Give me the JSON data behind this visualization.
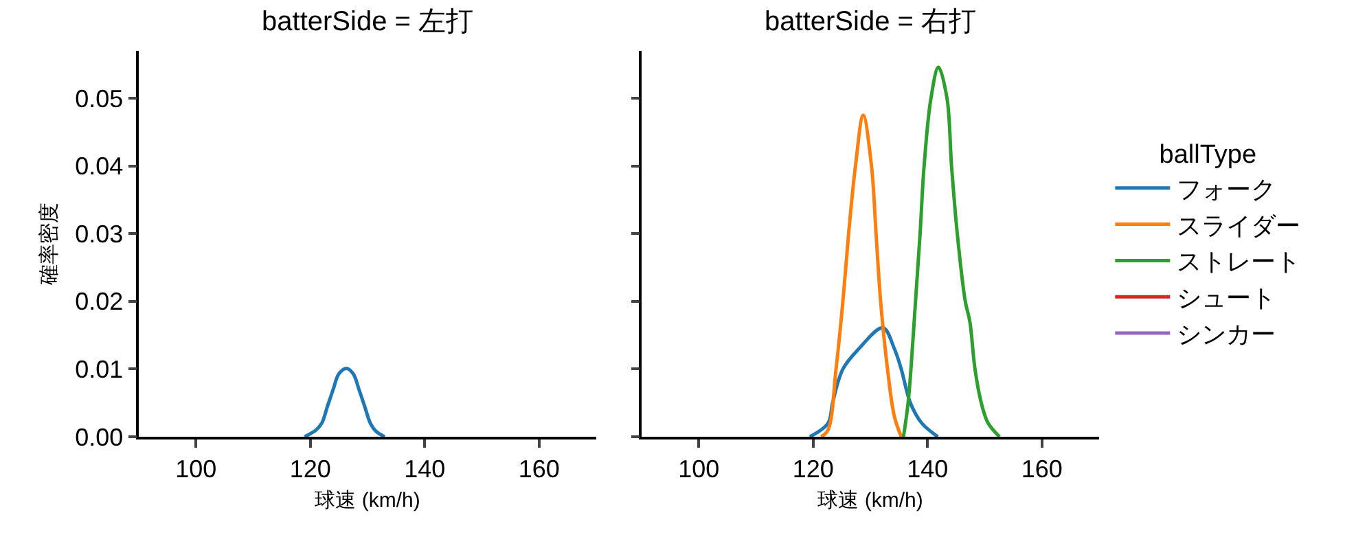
{
  "chart_data": [
    {
      "type": "line",
      "title": "batterSide = 左打",
      "xlabel": "球速 (km/h)",
      "ylabel": "確率密度",
      "xlim": [
        90,
        170
      ],
      "xticks": [
        100,
        120,
        140,
        160
      ],
      "ylim": [
        0,
        0.057
      ],
      "yticks": [
        {
          "value": 0,
          "label": "0.00"
        },
        {
          "value": 0.01,
          "label": "0.01"
        },
        {
          "value": 0.02,
          "label": "0.02"
        },
        {
          "value": 0.03,
          "label": "0.03"
        },
        {
          "value": 0.04,
          "label": "0.04"
        },
        {
          "value": 0.05,
          "label": "0.05"
        }
      ],
      "grid": false,
      "legend": false,
      "series": [
        {
          "color": "#1f77b4",
          "x": [
            119,
            121,
            122,
            123,
            124,
            125,
            126.3,
            127.5,
            128.5,
            129.5,
            130.5,
            131.5,
            133
          ],
          "values": [
            0,
            0.001,
            0.002,
            0.0045,
            0.007,
            0.0093,
            0.0101,
            0.0093,
            0.007,
            0.0045,
            0.002,
            0.0008,
            0
          ]
        }
      ]
    },
    {
      "type": "line",
      "title": "batterSide = 右打",
      "xlabel": "球速 (km/h)",
      "xlim": [
        90,
        170
      ],
      "xticks": [
        100,
        120,
        140,
        160
      ],
      "ylim": [
        0,
        0.057
      ],
      "yticks": [
        {
          "value": 0,
          "label": null
        },
        {
          "value": 0.01,
          "label": null
        },
        {
          "value": 0.02,
          "label": null
        },
        {
          "value": 0.03,
          "label": null
        },
        {
          "value": 0.04,
          "label": null
        },
        {
          "value": 0.05,
          "label": null
        }
      ],
      "tick_labels": "x",
      "grid": false,
      "legend": "right",
      "legend_title": "ballType",
      "series": [
        {
          "name": "フォーク",
          "color": "#1f77b4",
          "x": [
            119.4,
            122.6,
            123.4,
            125.2,
            128,
            132.2,
            134.2,
            135.4,
            137,
            139,
            141.8
          ],
          "values": [
            0,
            0.002,
            0.005,
            0.01,
            0.013,
            0.0161,
            0.013,
            0.01,
            0.005,
            0.002,
            0
          ]
        },
        {
          "name": "スライダー",
          "color": "#ff7f0e",
          "x": [
            121.4,
            122.6,
            124,
            125.2,
            126.2,
            127.4,
            128.75,
            130.2,
            131,
            131.8,
            133,
            134.2,
            135.4
          ],
          "values": [
            0,
            0.001,
            0.01,
            0.02,
            0.03,
            0.04,
            0.0475,
            0.04,
            0.03,
            0.02,
            0.01,
            0.003,
            0
          ]
        },
        {
          "name": "ストレート",
          "color": "#2ca02c",
          "x": [
            135.8,
            136.6,
            137.1,
            137.9,
            138.7,
            139.4,
            140.6,
            141.9,
            143.4,
            144.2,
            145.2,
            146.6,
            147.4,
            148.3,
            149.4,
            150.6,
            152.6
          ],
          "values": [
            0,
            0.005,
            0.01,
            0.02,
            0.03,
            0.04,
            0.05,
            0.0546,
            0.05,
            0.04,
            0.03,
            0.02,
            0.017,
            0.01,
            0.005,
            0.002,
            0
          ]
        },
        {
          "name": "シュート",
          "color": "#d62728",
          "values": [
            null
          ]
        },
        {
          "name": "シンカー",
          "color": "#9467bd",
          "values": [
            null
          ]
        }
      ]
    }
  ]
}
